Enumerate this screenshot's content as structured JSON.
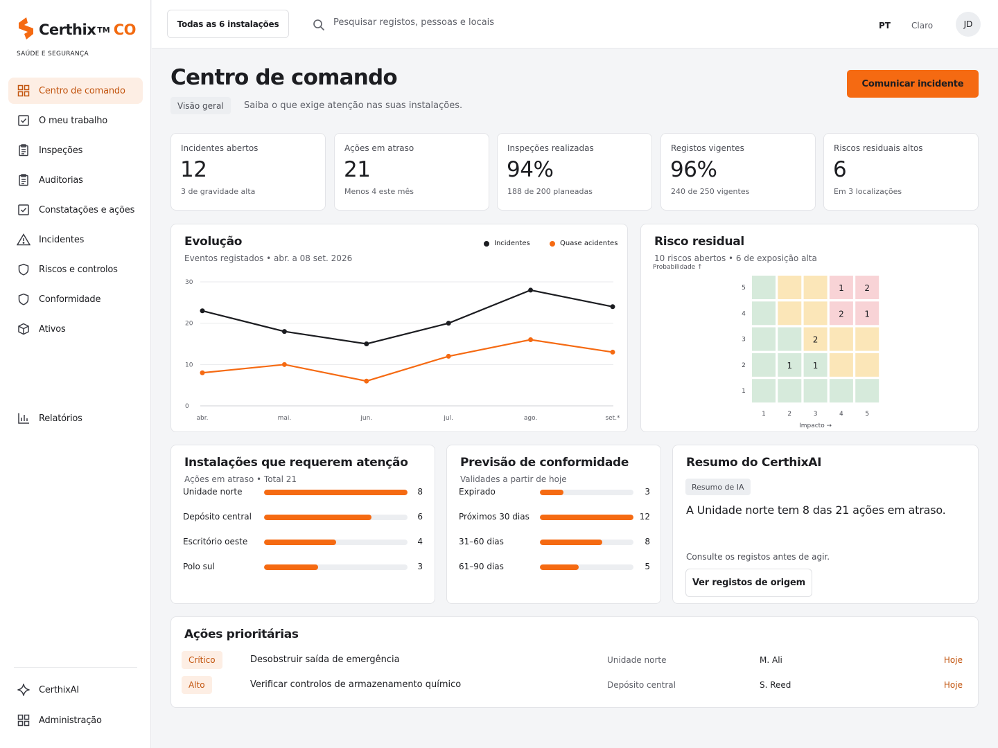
{
  "brand": {
    "name": "Certhix",
    "tm": "TM",
    "suffix": "CO",
    "tagline": "SAÚDE E SEGURANÇA"
  },
  "colors": {
    "accent": "#f56a12",
    "accent_text": "#c2540e",
    "dark_series": "#1c1d21"
  },
  "sidebar": {
    "items": [
      {
        "label": "Centro de comando",
        "icon": "dashboard-grid-icon",
        "active": true
      },
      {
        "label": "O meu trabalho",
        "icon": "checkbox-icon"
      },
      {
        "label": "Inspeções",
        "icon": "clipboard-icon"
      },
      {
        "label": "Auditorias",
        "icon": "clipboard-icon"
      },
      {
        "label": "Constatações e ações",
        "icon": "checkbox-icon"
      },
      {
        "label": "Incidentes",
        "icon": "warning-triangle-icon"
      },
      {
        "label": "Riscos e controlos",
        "icon": "shield-icon"
      },
      {
        "label": "Conformidade",
        "icon": "shield-icon"
      },
      {
        "label": "Ativos",
        "icon": "cube-icon"
      },
      {
        "label": "Relatórios",
        "icon": "bar-chart-icon"
      }
    ],
    "footer": [
      {
        "label": "CerthixAI",
        "icon": "sparkle-icon"
      },
      {
        "label": "Administração",
        "icon": "dashboard-grid-icon"
      }
    ]
  },
  "header": {
    "site_selector": "Todas as 6 instalações",
    "search_placeholder": "Pesquisar registos, pessoas e locais",
    "language": "PT",
    "theme": "Claro",
    "avatar_initials": "JD"
  },
  "page": {
    "title": "Centro de comando",
    "breadcrumb": "Visão geral",
    "subtitle": "Saiba o que exige atenção nas suas instalações.",
    "primary_action": "Comunicar incidente"
  },
  "kpis": [
    {
      "label": "Incidentes abertos",
      "value": "12",
      "note": "3 de gravidade alta"
    },
    {
      "label": "Ações em atraso",
      "value": "21",
      "note": "Menos 4 este mês"
    },
    {
      "label": "Inspeções realizadas",
      "value": "94%",
      "note": "188 de 200 planeadas"
    },
    {
      "label": "Registos vigentes",
      "value": "96%",
      "note": "240 de 250 vigentes"
    },
    {
      "label": "Riscos residuais altos",
      "value": "6",
      "note": "Em 3 localizações"
    }
  ],
  "evolution": {
    "title": "Evolução",
    "subtitle": "Eventos registados • abr. a 08 set. 2026",
    "chart_data": {
      "type": "line",
      "x": [
        "abr.",
        "mai.",
        "jun.",
        "jul.",
        "ago.",
        "set.*"
      ],
      "yticks": [
        0,
        10,
        20,
        30
      ],
      "ylim": [
        0,
        30
      ],
      "grid": true,
      "legend_position": "top-right",
      "series": [
        {
          "name": "Incidentes",
          "color": "#1c1d21",
          "values": [
            23,
            18,
            15,
            20,
            28,
            24
          ]
        },
        {
          "name": "Quase acidentes",
          "color": "#f56a12",
          "values": [
            8,
            10,
            6,
            12,
            16,
            13
          ]
        }
      ]
    }
  },
  "risk": {
    "title": "Risco residual",
    "subtitle": "10 riscos abertos • 6 de exposição alta",
    "y_axis_label": "Probabilidade ↑",
    "x_axis_label": "Impacto →",
    "chart_data": {
      "type": "heatmap",
      "x": [
        "1",
        "2",
        "3",
        "4",
        "5"
      ],
      "y": [
        "5",
        "4",
        "3",
        "2",
        "1"
      ],
      "levels": [
        [
          "low",
          "med",
          "med",
          "high",
          "high"
        ],
        [
          "low",
          "med",
          "med",
          "high",
          "high"
        ],
        [
          "low",
          "low",
          "med",
          "med",
          "med"
        ],
        [
          "low",
          "low",
          "low",
          "med",
          "med"
        ],
        [
          "low",
          "low",
          "low",
          "low",
          "low"
        ]
      ],
      "counts": [
        [
          "",
          "",
          "",
          "1",
          "2"
        ],
        [
          "",
          "",
          "",
          "2",
          "1"
        ],
        [
          "",
          "",
          "2",
          "",
          ""
        ],
        [
          "",
          "1",
          "1",
          "",
          ""
        ],
        [
          "",
          "",
          "",
          "",
          ""
        ]
      ],
      "level_colors": {
        "low": "#d6eadb",
        "med": "#fbe6b8",
        "high": "#f8d3d6"
      }
    }
  },
  "sites": {
    "title": "Instalações que requerem atenção",
    "subtitle": "Ações em atraso • Total 21",
    "chart_data": {
      "type": "bar",
      "orientation": "horizontal",
      "max": 8,
      "categories": [
        "Unidade norte",
        "Depósito central",
        "Escritório oeste",
        "Polo sul"
      ],
      "values": [
        8,
        6,
        4,
        3
      ]
    },
    "value_labels": [
      "8",
      "6",
      "4",
      "3"
    ]
  },
  "forecast": {
    "title": "Previsão de conformidade",
    "subtitle": "Validades a partir de hoje",
    "chart_data": {
      "type": "bar",
      "orientation": "horizontal",
      "max": 12,
      "categories": [
        "Expirado",
        "Próximos 30 dias",
        "31–60 dias",
        "61–90 dias"
      ],
      "values": [
        3,
        12,
        8,
        5
      ]
    },
    "value_labels": [
      "3",
      "12",
      "8",
      "5"
    ]
  },
  "ai": {
    "title": "Resumo do CerthixAI",
    "chip": "Resumo de IA",
    "summary": "A Unidade norte tem 8 das 21 ações em atraso.",
    "note": "Consulte os registos antes de agir.",
    "button": "Ver registos de origem"
  },
  "priority": {
    "title": "Ações prioritárias",
    "rows": [
      {
        "severity": "Crítico",
        "task": "Desobstruir saída de emergência",
        "site": "Unidade norte",
        "owner": "M. Ali",
        "due": "Hoje"
      },
      {
        "severity": "Alto",
        "task": "Verificar controlos de armazenamento químico",
        "site": "Depósito central",
        "owner": "S. Reed",
        "due": "Hoje"
      }
    ]
  }
}
